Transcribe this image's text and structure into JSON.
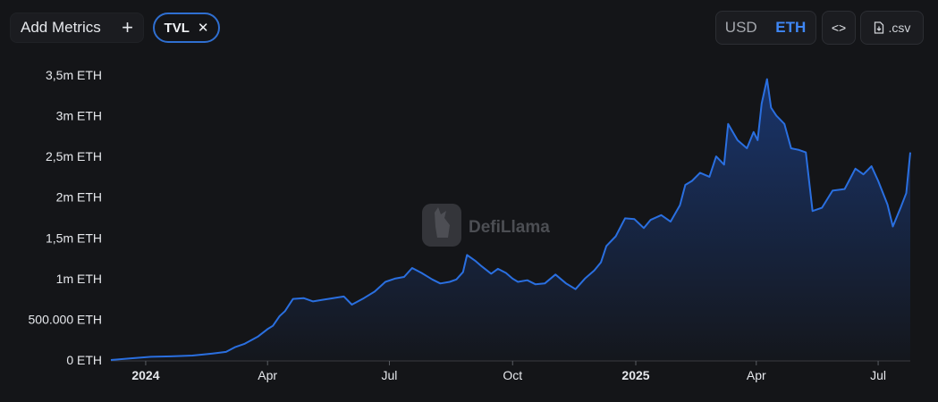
{
  "toolbar": {
    "add_metrics_label": "Add Metrics",
    "add_icon": "plus-icon",
    "metric_pill_label": "TVL",
    "remove_icon": "close-icon",
    "currency_options": [
      "USD",
      "ETH"
    ],
    "currency_selected": "ETH",
    "embed_icon": "code-icon",
    "csv_label": ".csv",
    "csv_icon": "file-download-icon"
  },
  "watermark": {
    "text": "DefiLlama",
    "icon": "llama-logo-icon"
  },
  "colors": {
    "background": "#141518",
    "line": "#2a6fe0",
    "accent": "#3f87f5"
  },
  "chart_data": {
    "type": "area",
    "y_ticks": [
      {
        "value": 0,
        "label": "0 ETH"
      },
      {
        "value": 500000,
        "label": "500.000 ETH"
      },
      {
        "value": 1000000,
        "label": "1m ETH"
      },
      {
        "value": 1500000,
        "label": "1,5m ETH"
      },
      {
        "value": 2000000,
        "label": "2m ETH"
      },
      {
        "value": 2500000,
        "label": "2,5m ETH"
      },
      {
        "value": 3000000,
        "label": "3m ETH"
      },
      {
        "value": 3500000,
        "label": "3,5m ETH"
      }
    ],
    "x_ticks": [
      {
        "date": "2024-01-01",
        "label": "2024",
        "bold": true
      },
      {
        "date": "2024-04-01",
        "label": "Apr",
        "bold": false
      },
      {
        "date": "2024-07-01",
        "label": "Jul",
        "bold": false
      },
      {
        "date": "2024-10-01",
        "label": "Oct",
        "bold": false
      },
      {
        "date": "2025-01-01",
        "label": "2025",
        "bold": true
      },
      {
        "date": "2025-04-01",
        "label": "Apr",
        "bold": false
      },
      {
        "date": "2025-07-01",
        "label": "Jul",
        "bold": false
      }
    ],
    "xlim": [
      "2023-12-06",
      "2025-07-25"
    ],
    "ylim": [
      0,
      3500000
    ],
    "series": [
      {
        "color": "#2a6fe0",
        "points": [
          [
            "2023-12-06",
            0
          ],
          [
            "2023-12-20",
            20000
          ],
          [
            "2024-01-05",
            40000
          ],
          [
            "2024-01-20",
            45000
          ],
          [
            "2024-02-05",
            55000
          ],
          [
            "2024-02-20",
            80000
          ],
          [
            "2024-03-01",
            100000
          ],
          [
            "2024-03-08",
            160000
          ],
          [
            "2024-03-15",
            200000
          ],
          [
            "2024-03-25",
            290000
          ],
          [
            "2024-04-01",
            380000
          ],
          [
            "2024-04-05",
            420000
          ],
          [
            "2024-04-10",
            540000
          ],
          [
            "2024-04-14",
            600000
          ],
          [
            "2024-04-20",
            750000
          ],
          [
            "2024-04-28",
            760000
          ],
          [
            "2024-05-05",
            720000
          ],
          [
            "2024-05-12",
            740000
          ],
          [
            "2024-05-20",
            760000
          ],
          [
            "2024-05-28",
            780000
          ],
          [
            "2024-06-03",
            680000
          ],
          [
            "2024-06-12",
            760000
          ],
          [
            "2024-06-20",
            840000
          ],
          [
            "2024-06-28",
            960000
          ],
          [
            "2024-07-05",
            1000000
          ],
          [
            "2024-07-12",
            1020000
          ],
          [
            "2024-07-18",
            1130000
          ],
          [
            "2024-07-25",
            1070000
          ],
          [
            "2024-08-02",
            990000
          ],
          [
            "2024-08-08",
            940000
          ],
          [
            "2024-08-15",
            960000
          ],
          [
            "2024-08-20",
            990000
          ],
          [
            "2024-08-25",
            1080000
          ],
          [
            "2024-08-28",
            1290000
          ],
          [
            "2024-09-03",
            1220000
          ],
          [
            "2024-09-08",
            1150000
          ],
          [
            "2024-09-15",
            1060000
          ],
          [
            "2024-09-20",
            1120000
          ],
          [
            "2024-09-26",
            1070000
          ],
          [
            "2024-10-01",
            1000000
          ],
          [
            "2024-10-05",
            960000
          ],
          [
            "2024-10-12",
            980000
          ],
          [
            "2024-10-18",
            930000
          ],
          [
            "2024-10-25",
            940000
          ],
          [
            "2024-11-02",
            1050000
          ],
          [
            "2024-11-10",
            940000
          ],
          [
            "2024-11-17",
            870000
          ],
          [
            "2024-11-24",
            1000000
          ],
          [
            "2024-12-01",
            1100000
          ],
          [
            "2024-12-06",
            1200000
          ],
          [
            "2024-12-10",
            1400000
          ],
          [
            "2024-12-17",
            1520000
          ],
          [
            "2024-12-24",
            1740000
          ],
          [
            "2024-12-31",
            1730000
          ],
          [
            "2025-01-07",
            1620000
          ],
          [
            "2025-01-12",
            1720000
          ],
          [
            "2025-01-20",
            1780000
          ],
          [
            "2025-01-27",
            1700000
          ],
          [
            "2025-02-03",
            1900000
          ],
          [
            "2025-02-07",
            2150000
          ],
          [
            "2025-02-12",
            2200000
          ],
          [
            "2025-02-18",
            2300000
          ],
          [
            "2025-02-25",
            2250000
          ],
          [
            "2025-03-02",
            2500000
          ],
          [
            "2025-03-08",
            2400000
          ],
          [
            "2025-03-11",
            2900000
          ],
          [
            "2025-03-18",
            2700000
          ],
          [
            "2025-03-25",
            2600000
          ],
          [
            "2025-03-30",
            2800000
          ],
          [
            "2025-04-02",
            2700000
          ],
          [
            "2025-04-05",
            3150000
          ],
          [
            "2025-04-09",
            3450000
          ],
          [
            "2025-04-12",
            3100000
          ],
          [
            "2025-04-16",
            3000000
          ],
          [
            "2025-04-22",
            2900000
          ],
          [
            "2025-04-27",
            2600000
          ],
          [
            "2025-05-03",
            2580000
          ],
          [
            "2025-05-08",
            2550000
          ],
          [
            "2025-05-13",
            1830000
          ],
          [
            "2025-05-20",
            1870000
          ],
          [
            "2025-05-28",
            2080000
          ],
          [
            "2025-06-06",
            2100000
          ],
          [
            "2025-06-14",
            2350000
          ],
          [
            "2025-06-20",
            2280000
          ],
          [
            "2025-06-26",
            2380000
          ],
          [
            "2025-07-01",
            2200000
          ],
          [
            "2025-07-08",
            1910000
          ],
          [
            "2025-07-12",
            1640000
          ],
          [
            "2025-07-18",
            1880000
          ],
          [
            "2025-07-22",
            2050000
          ],
          [
            "2025-07-25",
            2550000
          ]
        ]
      }
    ]
  }
}
